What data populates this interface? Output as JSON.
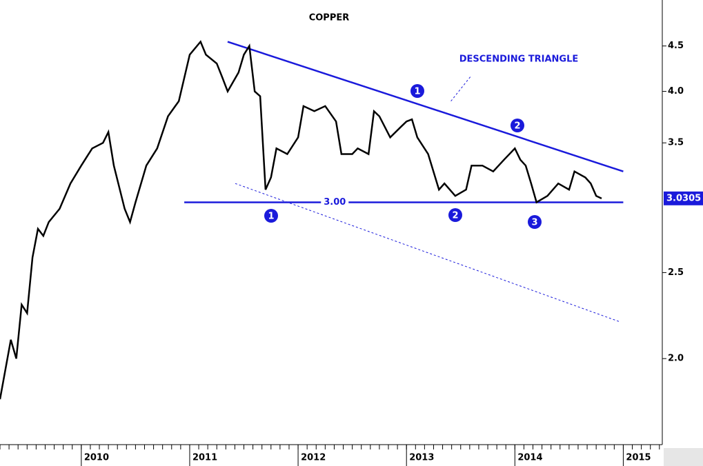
{
  "chart_data": {
    "type": "line",
    "title": "COPPER",
    "log_scale": true,
    "xlim": [
      2009.25,
      2015.36
    ],
    "xticks": [
      2010,
      2011,
      2012,
      2013,
      2014,
      2015
    ],
    "ylim": [
      1.6,
      5.07
    ],
    "yticks": [
      {
        "value": 2.0,
        "label": "2.0"
      },
      {
        "value": 2.5,
        "label": "2.5"
      },
      {
        "value": 3.5,
        "label": "3.5"
      },
      {
        "value": 4.0,
        "label": "4.0"
      },
      {
        "value": 4.5,
        "label": "4.5"
      }
    ],
    "series": [
      {
        "name": "COPPER",
        "color": "#000000",
        "x": [
          2009.25,
          2009.35,
          2009.4,
          2009.45,
          2009.5,
          2009.55,
          2009.6,
          2009.65,
          2009.7,
          2009.8,
          2009.9,
          2010.0,
          2010.1,
          2010.2,
          2010.25,
          2010.3,
          2010.4,
          2010.45,
          2010.5,
          2010.6,
          2010.7,
          2010.8,
          2010.9,
          2011.0,
          2011.1,
          2011.15,
          2011.25,
          2011.3,
          2011.35,
          2011.45,
          2011.5,
          2011.55,
          2011.6,
          2011.65,
          2011.7,
          2011.75,
          2011.8,
          2011.9,
          2012.0,
          2012.05,
          2012.15,
          2012.25,
          2012.35,
          2012.4,
          2012.5,
          2012.55,
          2012.65,
          2012.7,
          2012.75,
          2012.85,
          2012.95,
          2013.0,
          2013.05,
          2013.1,
          2013.2,
          2013.3,
          2013.35,
          2013.45,
          2013.55,
          2013.6,
          2013.7,
          2013.8,
          2013.9,
          2014.0,
          2014.05,
          2014.1,
          2014.15,
          2014.2,
          2014.3,
          2014.4,
          2014.5,
          2014.55,
          2014.65,
          2014.7,
          2014.75,
          2014.8
        ],
        "values": [
          1.8,
          2.1,
          2.0,
          2.3,
          2.25,
          2.6,
          2.8,
          2.75,
          2.85,
          2.95,
          3.15,
          3.3,
          3.45,
          3.5,
          3.6,
          3.3,
          2.95,
          2.85,
          3.0,
          3.3,
          3.45,
          3.75,
          3.9,
          4.4,
          4.55,
          4.4,
          4.3,
          4.15,
          4.0,
          4.2,
          4.4,
          4.5,
          4.0,
          3.95,
          3.1,
          3.2,
          3.45,
          3.4,
          3.55,
          3.85,
          3.8,
          3.85,
          3.7,
          3.4,
          3.4,
          3.45,
          3.4,
          3.8,
          3.75,
          3.55,
          3.65,
          3.7,
          3.72,
          3.55,
          3.4,
          3.1,
          3.15,
          3.05,
          3.1,
          3.3,
          3.3,
          3.25,
          3.35,
          3.45,
          3.35,
          3.3,
          3.15,
          3.0,
          3.05,
          3.15,
          3.1,
          3.25,
          3.2,
          3.15,
          3.05,
          3.03
        ]
      }
    ],
    "last_price": {
      "value": 3.0305,
      "label": "3.0305"
    },
    "trendlines": [
      {
        "style": "solid",
        "color": "#1a1adb",
        "x": [
          2011.35,
          2015.0
        ],
        "values": [
          4.55,
          3.25
        ]
      },
      {
        "style": "solid",
        "color": "#1a1adb",
        "x": [
          2010.95,
          2015.0
        ],
        "values": [
          3.0,
          3.0
        ],
        "label": "3.00"
      },
      {
        "style": "dotted",
        "color": "#1a1adb",
        "x": [
          2011.42,
          2014.97
        ],
        "values": [
          3.15,
          2.2
        ]
      },
      {
        "style": "dotted",
        "color": "#1a1adb",
        "x": [
          2013.41,
          2013.6
        ],
        "values": [
          3.9,
          4.17
        ]
      }
    ],
    "annotations": [
      "DESCENDING TRIANGLE"
    ],
    "markers": [
      "1",
      "2",
      "1",
      "2",
      "3"
    ]
  }
}
